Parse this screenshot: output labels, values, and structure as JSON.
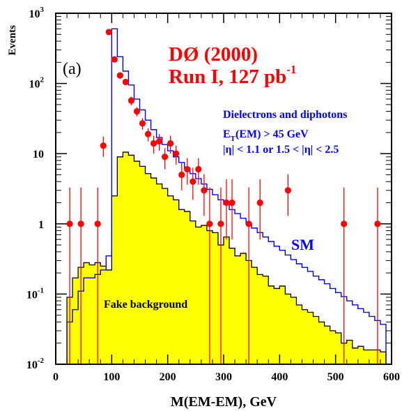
{
  "chart_data": {
    "type": "histogram",
    "panel_label": "(a)",
    "xlabel": "M(EM-EM), GeV",
    "ylabel": "Events",
    "xlim": [
      0,
      600
    ],
    "ylim": [
      0.01,
      1000
    ],
    "yscale": "log",
    "bin_width": 10,
    "x_ticks": [
      0,
      100,
      200,
      300,
      400,
      500,
      600
    ],
    "x_tick_labels": [
      "0",
      "100",
      "200",
      "300",
      "400",
      "500",
      "600"
    ],
    "y_ticks": [
      {
        "value": 1000,
        "base": "10",
        "exp": "3"
      },
      {
        "value": 100,
        "base": "10",
        "exp": "2"
      },
      {
        "value": 10,
        "base": "10",
        "exp": ""
      },
      {
        "value": 1,
        "base": "1",
        "exp": ""
      },
      {
        "value": 0.1,
        "base": "10",
        "exp": "-1"
      },
      {
        "value": 0.01,
        "base": "10",
        "exp": "-2"
      }
    ],
    "title_line1": "DØ (2000)",
    "title_line2_main": "Run I, 127 pb",
    "title_line2_sup": "-1",
    "legend_line1": "Dielectrons and diphotons",
    "legend_line2_E": "E",
    "legend_line2_sub": "T",
    "legend_line2_rest": "(EM) > 45 GeV",
    "legend_line3": "|η| < 1.1 or 1.5 < |η| < 2.5",
    "series_sm_label": "SM",
    "series_fake_label": "Fake background",
    "colors": {
      "sm": "#0000ff",
      "fake_fill": "#ffff00",
      "fake_line": "#000000",
      "data": "#ff0000",
      "title": "#ff0000",
      "legend": "#0000ff"
    },
    "series": [
      {
        "name": "SM",
        "style": "step",
        "bin_edges_start": 20,
        "values": [
          0.04,
          0.06,
          0.11,
          0.17,
          0.17,
          0.19,
          0.22,
          0.35,
          600,
          240,
          150,
          95,
          60,
          42,
          30,
          22,
          17,
          13.5,
          11,
          9,
          7.5,
          6.2,
          5.2,
          4.4,
          3.7,
          3.1,
          2.6,
          2.2,
          1.9,
          1.6,
          1.4,
          1.2,
          1.0,
          0.87,
          0.75,
          0.65,
          0.56,
          0.48,
          0.42,
          0.36,
          0.31,
          0.27,
          0.24,
          0.21,
          0.18,
          0.16,
          0.14,
          0.12,
          0.105,
          0.092,
          0.08,
          0.07,
          0.062,
          0.055,
          0.048,
          0.042,
          0.037
        ]
      },
      {
        "name": "Fake background",
        "style": "filled-step",
        "bin_edges_start": 20,
        "values": [
          0.09,
          0.17,
          0.24,
          0.28,
          0.26,
          0.28,
          0.25,
          0.22,
          2.5,
          9.0,
          10.5,
          9.5,
          7.8,
          6.6,
          5.2,
          4.5,
          3.7,
          3.2,
          2.5,
          2.2,
          1.6,
          1.5,
          1.1,
          0.9,
          0.95,
          0.8,
          0.75,
          0.5,
          0.65,
          0.45,
          0.35,
          0.38,
          0.3,
          0.24,
          0.19,
          0.18,
          0.13,
          0.12,
          0.13,
          0.1,
          0.09,
          0.07,
          0.06,
          0.055,
          0.048,
          0.04,
          0.035,
          0.03,
          0.028,
          0.02,
          0.022,
          0.017,
          0.018,
          0.016,
          0.016,
          0.016,
          0.015
        ]
      }
    ],
    "data_points": [
      {
        "x": 25,
        "y": 1,
        "lo": 0.01,
        "hi": 3.3
      },
      {
        "x": 45,
        "y": 1,
        "lo": 0.01,
        "hi": 3.3
      },
      {
        "x": 75,
        "y": 1,
        "lo": 0.01,
        "hi": 3.3
      },
      {
        "x": 85,
        "y": 13,
        "lo": 9,
        "hi": 17.6
      },
      {
        "x": 95,
        "y": 540,
        "lo": 517,
        "hi": 563
      },
      {
        "x": 105,
        "y": 220,
        "lo": 205,
        "hi": 235
      },
      {
        "x": 115,
        "y": 130,
        "lo": 119,
        "hi": 141
      },
      {
        "x": 125,
        "y": 105,
        "lo": 95,
        "hi": 115
      },
      {
        "x": 135,
        "y": 57,
        "lo": 49,
        "hi": 65
      },
      {
        "x": 145,
        "y": 40,
        "lo": 34,
        "hi": 46
      },
      {
        "x": 155,
        "y": 27,
        "lo": 22,
        "hi": 32
      },
      {
        "x": 165,
        "y": 19,
        "lo": 15,
        "hi": 23
      },
      {
        "x": 175,
        "y": 14,
        "lo": 10,
        "hi": 18
      },
      {
        "x": 185,
        "y": 15,
        "lo": 11,
        "hi": 19
      },
      {
        "x": 195,
        "y": 9,
        "lo": 6,
        "hi": 12
      },
      {
        "x": 205,
        "y": 14,
        "lo": 10,
        "hi": 18
      },
      {
        "x": 215,
        "y": 10,
        "lo": 7,
        "hi": 13
      },
      {
        "x": 225,
        "y": 5,
        "lo": 3,
        "hi": 7.5
      },
      {
        "x": 235,
        "y": 6,
        "lo": 3.6,
        "hi": 8.6
      },
      {
        "x": 245,
        "y": 4,
        "lo": 2.2,
        "hi": 6.3
      },
      {
        "x": 255,
        "y": 6,
        "lo": 3.6,
        "hi": 8.6
      },
      {
        "x": 265,
        "y": 3,
        "lo": 1.3,
        "hi": 5.1
      },
      {
        "x": 275,
        "y": 1,
        "lo": 0.01,
        "hi": 3.3
      },
      {
        "x": 295,
        "y": 1,
        "lo": 0.01,
        "hi": 3.3
      },
      {
        "x": 305,
        "y": 2,
        "lo": 0.6,
        "hi": 4.3
      },
      {
        "x": 315,
        "y": 2,
        "lo": 0.6,
        "hi": 4.3
      },
      {
        "x": 345,
        "y": 1,
        "lo": 0.01,
        "hi": 3.3
      },
      {
        "x": 365,
        "y": 2,
        "lo": 0.6,
        "hi": 4.3
      },
      {
        "x": 415,
        "y": 3,
        "lo": 1.3,
        "hi": 5.1
      },
      {
        "x": 515,
        "y": 1,
        "lo": 0.01,
        "hi": 3.3
      },
      {
        "x": 575,
        "y": 1,
        "lo": 0.01,
        "hi": 3.3
      }
    ]
  }
}
